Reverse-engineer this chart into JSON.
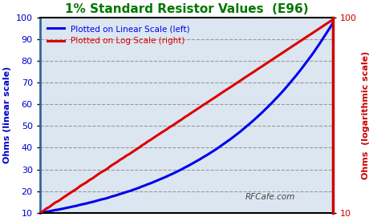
{
  "title": "1% Standard Resistor Values  (E96)",
  "title_color": "#007700",
  "left_ylabel": "Ohms (linear scale)",
  "right_ylabel": "Ohms  (logarithmic scale)",
  "left_ylabel_color": "#0000cc",
  "right_ylabel_color": "#cc0000",
  "line_blue_label": "Plotted on Linear Scale (left)",
  "line_red_label": "Plotted on Log Scale (right)",
  "line_blue_color": "#0000ee",
  "line_red_color": "#dd0000",
  "line_width": 2.2,
  "ylim_left": [
    10,
    100
  ],
  "ylim_right": [
    10,
    100
  ],
  "yticks_left": [
    10,
    20,
    30,
    40,
    50,
    60,
    70,
    80,
    90,
    100
  ],
  "grid_color": "#999999",
  "grid_style": "--",
  "watermark": "RFCafe.com",
  "watermark_color": "#444444",
  "bg_color": "#ffffff",
  "plot_bg_color": "#dce6f0",
  "left_spine_color": "#336699",
  "right_spine_color": "#cc0000",
  "e96_values": [
    10.0,
    10.2,
    10.5,
    10.7,
    11.0,
    11.3,
    11.5,
    11.8,
    12.1,
    12.4,
    12.7,
    13.0,
    13.3,
    13.7,
    14.0,
    14.3,
    14.7,
    15.0,
    15.4,
    15.8,
    16.2,
    16.5,
    16.9,
    17.4,
    17.8,
    18.2,
    18.7,
    19.1,
    19.6,
    20.0,
    20.5,
    21.0,
    21.5,
    22.1,
    22.6,
    23.2,
    23.7,
    24.3,
    24.9,
    25.5,
    26.1,
    26.7,
    27.4,
    28.0,
    28.7,
    29.4,
    30.1,
    30.9,
    31.6,
    32.4,
    33.2,
    34.0,
    34.8,
    35.7,
    36.5,
    37.4,
    38.3,
    39.2,
    40.2,
    41.2,
    42.2,
    43.2,
    44.2,
    45.3,
    46.4,
    47.5,
    48.7,
    49.9,
    51.1,
    52.3,
    53.6,
    54.9,
    56.2,
    57.6,
    59.0,
    60.4,
    61.9,
    63.4,
    64.9,
    66.5,
    68.1,
    69.8,
    71.5,
    73.2,
    75.0,
    76.8,
    78.7,
    80.6,
    82.5,
    84.5,
    86.6,
    88.7,
    90.9,
    93.1,
    95.3,
    97.6
  ]
}
